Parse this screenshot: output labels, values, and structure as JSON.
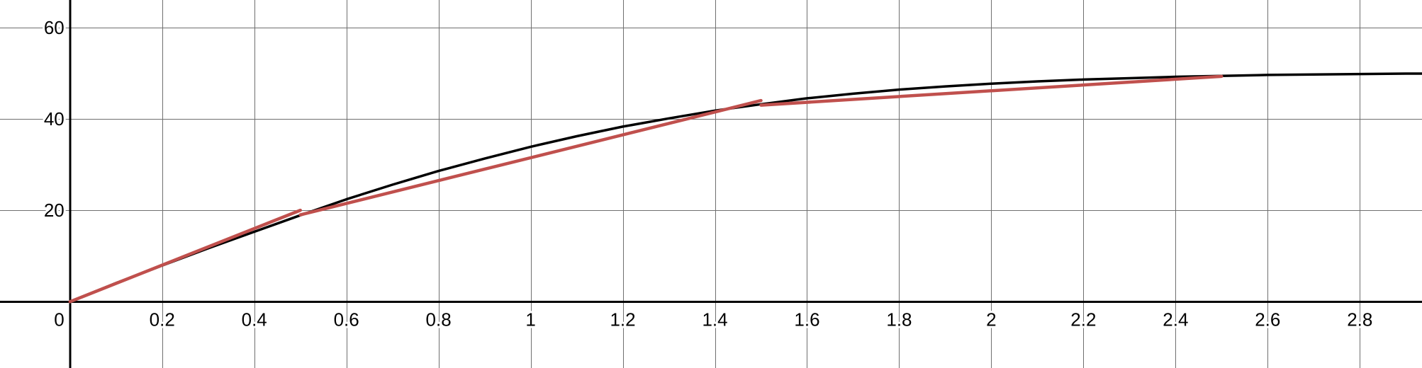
{
  "chart_data": {
    "type": "line",
    "title": "",
    "xlabel": "",
    "ylabel": "",
    "xlim": [
      -0.152,
      2.935
    ],
    "ylim": [
      -14.5,
      66
    ],
    "grid": true,
    "x_ticks": [
      0.2,
      0.4,
      0.6,
      0.8,
      1,
      1.2,
      1.4,
      1.6,
      1.8,
      2,
      2.2,
      2.4,
      2.6,
      2.8
    ],
    "x_tick_labels": [
      "0.2",
      "0.4",
      "0.6",
      "0.8",
      "1",
      "1.2",
      "1.4",
      "1.6",
      "1.8",
      "2",
      "2.2",
      "2.4",
      "2.6",
      "2.8"
    ],
    "y_ticks": [
      20,
      40,
      60
    ],
    "y_tick_labels": [
      "20",
      "40",
      "60"
    ],
    "origin_label": "0",
    "series": [
      {
        "color": "#000000",
        "x": [
          0,
          0.1,
          0.2,
          0.3,
          0.4,
          0.5,
          0.6,
          0.7,
          0.8,
          0.9,
          1.0,
          1.1,
          1.2,
          1.3,
          1.4,
          1.5,
          1.6,
          1.7,
          1.8,
          1.9,
          2.0,
          2.1,
          2.2,
          2.3,
          2.4,
          2.5,
          2.6,
          2.7,
          2.8,
          2.9,
          2.935
        ],
        "values": [
          0,
          4.1,
          7.9,
          11.7,
          15.3,
          18.9,
          22.4,
          25.6,
          28.6,
          31.3,
          33.9,
          36.2,
          38.3,
          40.1,
          41.8,
          43.2,
          44.5,
          45.5,
          46.4,
          47.1,
          47.7,
          48.2,
          48.6,
          48.9,
          49.2,
          49.4,
          49.6,
          49.7,
          49.8,
          49.9,
          49.9
        ]
      },
      {
        "color": "#c0504d",
        "segments": [
          {
            "x": [
              0,
              0.5
            ],
            "values": [
              0,
              20
            ]
          },
          {
            "x": [
              0.5,
              1.5
            ],
            "values": [
              19,
              44
            ]
          },
          {
            "x": [
              1.5,
              2.5
            ],
            "values": [
              43,
              49.3
            ]
          }
        ]
      }
    ]
  }
}
